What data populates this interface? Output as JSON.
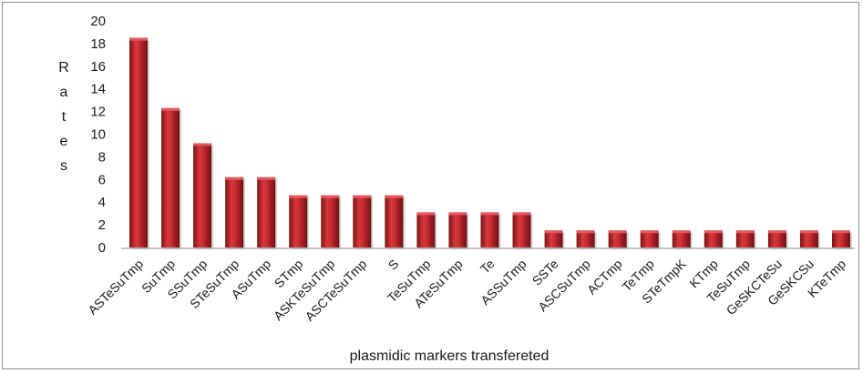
{
  "chart_data": {
    "type": "bar",
    "title": "",
    "xlabel": "plasmidic markers transfereted",
    "ylabel": "Rates",
    "ylim": [
      0,
      20
    ],
    "yticks": [
      0,
      2,
      4,
      6,
      8,
      10,
      12,
      14,
      16,
      18,
      20
    ],
    "grid": false,
    "legend": "none",
    "bar_color": "#c0282d",
    "categories": [
      "ASTeSuTmp",
      "SuTmp",
      "SSuTmp",
      "STeSuTmp",
      "ASuTmp",
      "STmp",
      "ASKTeSuTmp",
      "ASCTeSuTmp",
      "S",
      "TeSuTmp",
      "ATeSuTmp",
      "Te",
      "ASSuTmp",
      "SSTe",
      "ASCSuTmp",
      "ACTmp",
      "TeTmp",
      "STeTmpK",
      "KTmp",
      "TeSuTmp",
      "GeSKCTeSu",
      "GeSKCSu",
      "KTeTmp"
    ],
    "values": [
      18.5,
      12.3,
      9.2,
      6.2,
      6.2,
      4.6,
      4.6,
      4.6,
      4.6,
      3.1,
      3.1,
      3.1,
      3.1,
      1.5,
      1.5,
      1.5,
      1.5,
      1.5,
      1.5,
      1.5,
      1.5,
      1.5,
      1.5
    ]
  }
}
